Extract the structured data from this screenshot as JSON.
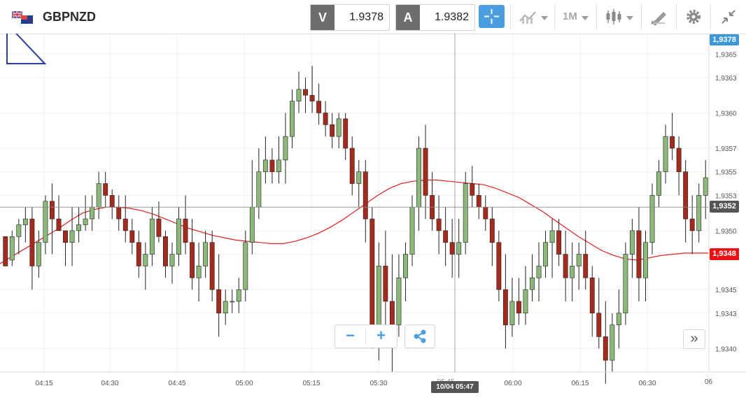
{
  "toolbar": {
    "symbol": "GBPNZD",
    "flag_icon": "gb-nz-flag-icon",
    "sell": {
      "tag": "V",
      "price": "1.9378"
    },
    "buy": {
      "tag": "A",
      "price": "1.9382"
    },
    "timeframe": "1M",
    "accent_color": "#4a9ee0"
  },
  "chart": {
    "crosshair_price": "1,9352",
    "sell_price_tag": "1,9378",
    "ma_price_tag": "1,9348",
    "crosshair_time": "10/04 05:47",
    "obscured_time_label": "05:45",
    "right_edge_time_label": "06",
    "colors": {
      "bull": "#8cb87a",
      "bear": "#a52a1e",
      "ma": "#e02020",
      "grid": "#efefef"
    }
  },
  "chart_data": {
    "type": "candlestick",
    "y_ticks": [
      "1,9365",
      "1,9363",
      "1,9360",
      "1,9357",
      "1,9355",
      "1,9353",
      "1,9350",
      "1,9348",
      "1,9345",
      "1,9343",
      "1,9340"
    ],
    "x_ticks": [
      "04:15",
      "04:30",
      "04:45",
      "05:00",
      "05:15",
      "05:30",
      "06:00",
      "06:15",
      "06:30"
    ],
    "ylim": [
      1.9338,
      1.93665
    ],
    "candles_ohlc": [
      [
        1.93495,
        1.93495,
        1.9347,
        1.9347
      ],
      [
        1.93475,
        1.935,
        1.9347,
        1.93495
      ],
      [
        1.93495,
        1.9351,
        1.9348,
        1.93505
      ],
      [
        1.93505,
        1.9352,
        1.9349,
        1.9351
      ],
      [
        1.9351,
        1.9352,
        1.9345,
        1.9347
      ],
      [
        1.9347,
        1.935,
        1.9346,
        1.9349
      ],
      [
        1.9349,
        1.9353,
        1.9348,
        1.93525
      ],
      [
        1.93525,
        1.9354,
        1.9348,
        1.9351
      ],
      [
        1.9351,
        1.9353,
        1.935,
        1.935
      ],
      [
        1.935,
        1.935,
        1.9347,
        1.9349
      ],
      [
        1.9349,
        1.9352,
        1.9347,
        1.935
      ],
      [
        1.935,
        1.9352,
        1.9349,
        1.93505
      ],
      [
        1.93505,
        1.9353,
        1.935,
        1.9351
      ],
      [
        1.9351,
        1.9353,
        1.935,
        1.9352
      ],
      [
        1.9352,
        1.9355,
        1.9351,
        1.9354
      ],
      [
        1.9354,
        1.9355,
        1.9352,
        1.9353
      ],
      [
        1.9353,
        1.93535,
        1.9351,
        1.9352
      ],
      [
        1.9352,
        1.9353,
        1.935,
        1.9351
      ],
      [
        1.9351,
        1.9353,
        1.9349,
        1.935
      ],
      [
        1.935,
        1.9351,
        1.9348,
        1.9349
      ],
      [
        1.9349,
        1.935,
        1.9346,
        1.9347
      ],
      [
        1.9347,
        1.9349,
        1.9345,
        1.9348
      ],
      [
        1.9348,
        1.9352,
        1.9347,
        1.9351
      ],
      [
        1.9351,
        1.93525,
        1.9349,
        1.93495
      ],
      [
        1.93495,
        1.935,
        1.9346,
        1.9347
      ],
      [
        1.9347,
        1.9349,
        1.93455,
        1.9348
      ],
      [
        1.9348,
        1.9352,
        1.9347,
        1.9351
      ],
      [
        1.9351,
        1.9353,
        1.9348,
        1.9349
      ],
      [
        1.9349,
        1.9351,
        1.9345,
        1.9346
      ],
      [
        1.9346,
        1.9349,
        1.9344,
        1.9347
      ],
      [
        1.9347,
        1.935,
        1.9346,
        1.9349
      ],
      [
        1.9349,
        1.935,
        1.9344,
        1.9345
      ],
      [
        1.9345,
        1.9348,
        1.9341,
        1.9343
      ],
      [
        1.9343,
        1.9345,
        1.9342,
        1.9344
      ],
      [
        1.9344,
        1.9345,
        1.9343,
        1.9344
      ],
      [
        1.9344,
        1.9346,
        1.9343,
        1.9345
      ],
      [
        1.9345,
        1.935,
        1.9344,
        1.9349
      ],
      [
        1.9349,
        1.9356,
        1.9348,
        1.9352
      ],
      [
        1.9352,
        1.9357,
        1.9351,
        1.9355
      ],
      [
        1.9355,
        1.9358,
        1.9354,
        1.9356
      ],
      [
        1.9356,
        1.9357,
        1.9354,
        1.9355
      ],
      [
        1.9355,
        1.9358,
        1.9354,
        1.9356
      ],
      [
        1.9356,
        1.936,
        1.9354,
        1.9358
      ],
      [
        1.9358,
        1.9362,
        1.9357,
        1.9361
      ],
      [
        1.9361,
        1.93635,
        1.936,
        1.9362
      ],
      [
        1.9362,
        1.9363,
        1.936,
        1.93615
      ],
      [
        1.93615,
        1.9364,
        1.936,
        1.9361
      ],
      [
        1.9361,
        1.93625,
        1.9359,
        1.936
      ],
      [
        1.936,
        1.9361,
        1.9358,
        1.9359
      ],
      [
        1.9359,
        1.936,
        1.9357,
        1.9358
      ],
      [
        1.9358,
        1.936,
        1.9357,
        1.93595
      ],
      [
        1.93595,
        1.936,
        1.9356,
        1.9357
      ],
      [
        1.9357,
        1.9358,
        1.9353,
        1.9354
      ],
      [
        1.9354,
        1.9356,
        1.9352,
        1.9355
      ],
      [
        1.9355,
        1.9356,
        1.9349,
        1.9351
      ],
      [
        1.9351,
        1.9352,
        1.934,
        1.9342
      ],
      [
        1.9342,
        1.9349,
        1.9339,
        1.9347
      ],
      [
        1.9347,
        1.935,
        1.9342,
        1.9344
      ],
      [
        1.9344,
        1.9348,
        1.9338,
        1.9342
      ],
      [
        1.9342,
        1.9348,
        1.9341,
        1.9346
      ],
      [
        1.9346,
        1.9349,
        1.9344,
        1.9348
      ],
      [
        1.9348,
        1.9353,
        1.9347,
        1.9352
      ],
      [
        1.9352,
        1.9358,
        1.935,
        1.9357
      ],
      [
        1.9357,
        1.9359,
        1.9351,
        1.9353
      ],
      [
        1.9353,
        1.9355,
        1.935,
        1.9351
      ],
      [
        1.9351,
        1.9353,
        1.9348,
        1.935
      ],
      [
        1.935,
        1.9352,
        1.9347,
        1.9349
      ],
      [
        1.9349,
        1.9351,
        1.9346,
        1.9348
      ],
      [
        1.9348,
        1.9351,
        1.9346,
        1.9349
      ],
      [
        1.9349,
        1.9355,
        1.9348,
        1.9354
      ],
      [
        1.9354,
        1.93555,
        1.9352,
        1.9353
      ],
      [
        1.9353,
        1.9354,
        1.9351,
        1.9352
      ],
      [
        1.9352,
        1.9353,
        1.935,
        1.9351
      ],
      [
        1.9351,
        1.9352,
        1.9347,
        1.9349
      ],
      [
        1.9349,
        1.935,
        1.9344,
        1.9345
      ],
      [
        1.9345,
        1.9348,
        1.934,
        1.9342
      ],
      [
        1.9342,
        1.9346,
        1.9341,
        1.9344
      ],
      [
        1.9344,
        1.9346,
        1.9342,
        1.9343
      ],
      [
        1.9343,
        1.9347,
        1.9342,
        1.9345
      ],
      [
        1.9345,
        1.9348,
        1.9344,
        1.9346
      ],
      [
        1.9346,
        1.9349,
        1.9344,
        1.9347
      ],
      [
        1.9347,
        1.935,
        1.9346,
        1.9349
      ],
      [
        1.9349,
        1.9351,
        1.9346,
        1.935
      ],
      [
        1.935,
        1.9351,
        1.9347,
        1.9348
      ],
      [
        1.9348,
        1.935,
        1.9344,
        1.9346
      ],
      [
        1.9346,
        1.9349,
        1.9344,
        1.9347
      ],
      [
        1.9347,
        1.9349,
        1.9345,
        1.9348
      ],
      [
        1.9348,
        1.935,
        1.9345,
        1.9346
      ],
      [
        1.9346,
        1.9347,
        1.9341,
        1.9343
      ],
      [
        1.9343,
        1.9346,
        1.934,
        1.9341
      ],
      [
        1.9341,
        1.9344,
        1.9337,
        1.9339
      ],
      [
        1.9339,
        1.9343,
        1.9338,
        1.9342
      ],
      [
        1.9342,
        1.9345,
        1.934,
        1.9343
      ],
      [
        1.9343,
        1.9349,
        1.9342,
        1.9348
      ],
      [
        1.9348,
        1.9351,
        1.9346,
        1.935
      ],
      [
        1.935,
        1.9352,
        1.9344,
        1.9346
      ],
      [
        1.9346,
        1.935,
        1.9344,
        1.9349
      ],
      [
        1.9349,
        1.9354,
        1.9348,
        1.9353
      ],
      [
        1.9353,
        1.9356,
        1.9352,
        1.9355
      ],
      [
        1.9355,
        1.9359,
        1.9354,
        1.9358
      ],
      [
        1.9358,
        1.936,
        1.9356,
        1.9357
      ],
      [
        1.9357,
        1.9358,
        1.9353,
        1.9355
      ],
      [
        1.9355,
        1.9356,
        1.9349,
        1.9351
      ],
      [
        1.9351,
        1.9353,
        1.9348,
        1.935
      ],
      [
        1.935,
        1.9354,
        1.9349,
        1.9353
      ],
      [
        1.9353,
        1.9356,
        1.9351,
        1.93545
      ]
    ],
    "moving_average": [
      1.93472,
      1.93478,
      1.93484,
      1.9349,
      1.93496,
      1.93502,
      1.93509,
      1.93515,
      1.93518,
      1.9352,
      1.9352,
      1.93519,
      1.93517,
      1.93514,
      1.9351,
      1.93506,
      1.93502,
      1.93499,
      1.93496,
      1.93494,
      1.93492,
      1.93491,
      1.9349,
      1.93489,
      1.93489,
      1.93491,
      1.93494,
      1.93498,
      1.93503,
      1.93509,
      1.93516,
      1.93523,
      1.9353,
      1.93536,
      1.9354,
      1.93542,
      1.93543,
      1.93543,
      1.93542,
      1.93541,
      1.9354,
      1.93539,
      1.93536,
      1.93532,
      1.93528,
      1.93522,
      1.93516,
      1.93509,
      1.93502,
      1.93495,
      1.93489,
      1.93483,
      1.93479,
      1.93476,
      1.93475,
      1.93477,
      1.93479,
      1.9348,
      1.93481,
      1.93481,
      1.93481
    ]
  },
  "zoom": {
    "minus": "−",
    "plus": "+"
  },
  "controls": {
    "scroll_end": "»"
  }
}
